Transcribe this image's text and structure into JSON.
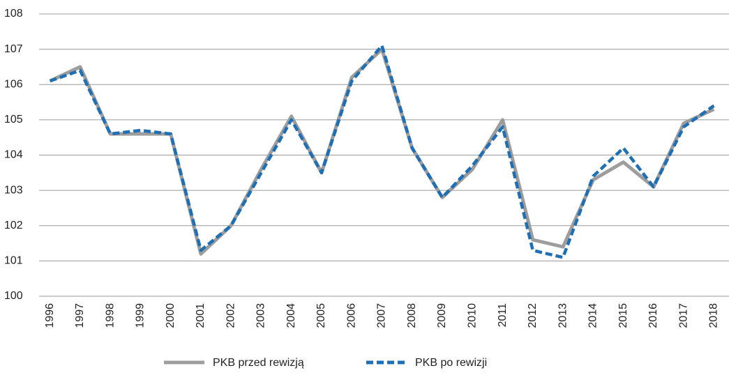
{
  "chart_data": {
    "type": "line",
    "categories": [
      "1996",
      "1997",
      "1998",
      "1999",
      "2000",
      "2001",
      "2002",
      "2003",
      "2004",
      "2005",
      "2006",
      "2007",
      "2008",
      "2009",
      "2010",
      "2011",
      "2012",
      "2013",
      "2014",
      "2015",
      "2016",
      "2017",
      "2018"
    ],
    "series": [
      {
        "name": "PKB przed rewizją",
        "color": "#9d9d9d",
        "values": [
          106.1,
          106.5,
          104.6,
          104.6,
          104.6,
          101.2,
          102.0,
          103.6,
          105.1,
          103.5,
          106.2,
          107.0,
          104.2,
          102.8,
          103.6,
          105.0,
          101.6,
          101.4,
          103.3,
          103.8,
          103.1,
          104.9,
          105.3
        ]
      },
      {
        "name": "PKB po rewizji",
        "color": "#1f6fb4",
        "dashed": true,
        "values": [
          106.1,
          106.4,
          104.6,
          104.7,
          104.6,
          101.3,
          102.0,
          103.5,
          105.0,
          103.5,
          106.1,
          107.1,
          104.2,
          102.8,
          103.7,
          104.8,
          101.3,
          101.1,
          103.4,
          104.2,
          103.1,
          104.8,
          105.4
        ]
      }
    ],
    "ylim": [
      100,
      108
    ],
    "yticks": [
      100,
      101,
      102,
      103,
      104,
      105,
      106,
      107,
      108
    ],
    "grid": true,
    "legend": "bottom"
  }
}
